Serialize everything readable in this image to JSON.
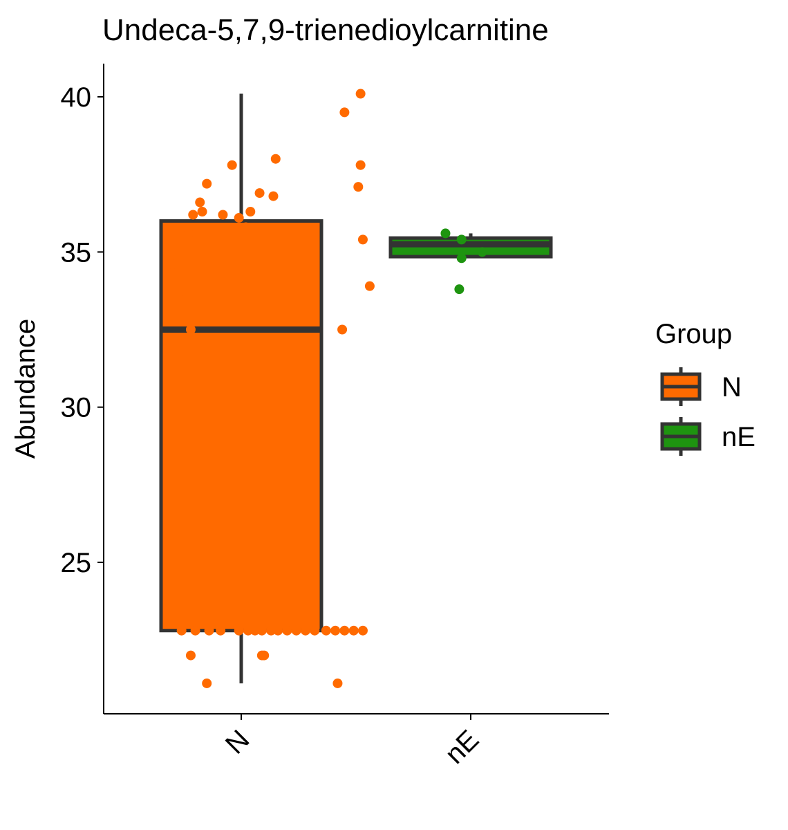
{
  "chart_data": {
    "type": "box",
    "title": "Undeca-5,7,9-trienedioylcarnitine",
    "xlabel": "",
    "ylabel": "Abundance",
    "categories": [
      "N",
      "nE"
    ],
    "ylim": [
      20.4,
      41.1
    ],
    "yticks": [
      25,
      30,
      35,
      40
    ],
    "grid": false,
    "legend": {
      "title": "Group",
      "position": "right",
      "entries": [
        "N",
        "nE"
      ]
    },
    "colors": {
      "N": "#FF6A00",
      "nE": "#1E9410",
      "outline": "#333333"
    },
    "boxes": [
      {
        "group": "N",
        "whisker_low": 21.1,
        "q1": 22.8,
        "median": 32.5,
        "q3": 36.0,
        "whisker_high": 40.1
      },
      {
        "group": "nE",
        "whisker_low": 34.8,
        "q1": 34.85,
        "median": 35.25,
        "q3": 35.45,
        "whisker_high": 35.6
      }
    ],
    "points": {
      "N": [
        [
          0.7,
          34.6
        ],
        [
          0.76,
          33.5
        ],
        [
          0.78,
          32.5
        ],
        [
          0.77,
          35.6
        ],
        [
          0.79,
          36.2
        ],
        [
          0.83,
          36.3
        ],
        [
          0.82,
          36.6
        ],
        [
          0.85,
          37.2
        ],
        [
          0.92,
          36.2
        ],
        [
          0.96,
          37.8
        ],
        [
          0.99,
          36.1
        ],
        [
          1.04,
          36.3
        ],
        [
          1.02,
          35.8
        ],
        [
          1.08,
          36.9
        ],
        [
          1.15,
          38.0
        ],
        [
          1.14,
          36.8
        ],
        [
          1.45,
          39.5
        ],
        [
          1.44,
          32.5
        ],
        [
          1.52,
          40.1
        ],
        [
          1.52,
          37.8
        ],
        [
          1.51,
          37.1
        ],
        [
          1.53,
          35.4
        ],
        [
          1.56,
          33.9
        ],
        [
          0.78,
          22.0
        ],
        [
          0.85,
          21.1
        ],
        [
          1.09,
          22.0
        ],
        [
          1.1,
          22.0
        ],
        [
          1.42,
          21.1
        ],
        [
          0.74,
          22.8
        ],
        [
          0.8,
          22.8
        ],
        [
          0.86,
          22.8
        ],
        [
          0.91,
          22.8
        ],
        [
          0.99,
          22.8
        ],
        [
          1.03,
          22.8
        ],
        [
          1.06,
          22.8
        ],
        [
          1.09,
          22.8
        ],
        [
          1.13,
          22.8
        ],
        [
          1.16,
          22.8
        ],
        [
          1.2,
          22.8
        ],
        [
          1.24,
          22.8
        ],
        [
          1.28,
          22.8
        ],
        [
          1.32,
          22.8
        ],
        [
          1.37,
          22.8
        ],
        [
          1.41,
          22.8
        ],
        [
          1.45,
          22.8
        ],
        [
          1.49,
          22.8
        ],
        [
          1.53,
          22.8
        ]
      ],
      "nE": [
        [
          1.89,
          35.6
        ],
        [
          1.96,
          35.4
        ],
        [
          1.96,
          34.8
        ],
        [
          2.05,
          35.0
        ],
        [
          1.95,
          33.8
        ]
      ]
    }
  }
}
